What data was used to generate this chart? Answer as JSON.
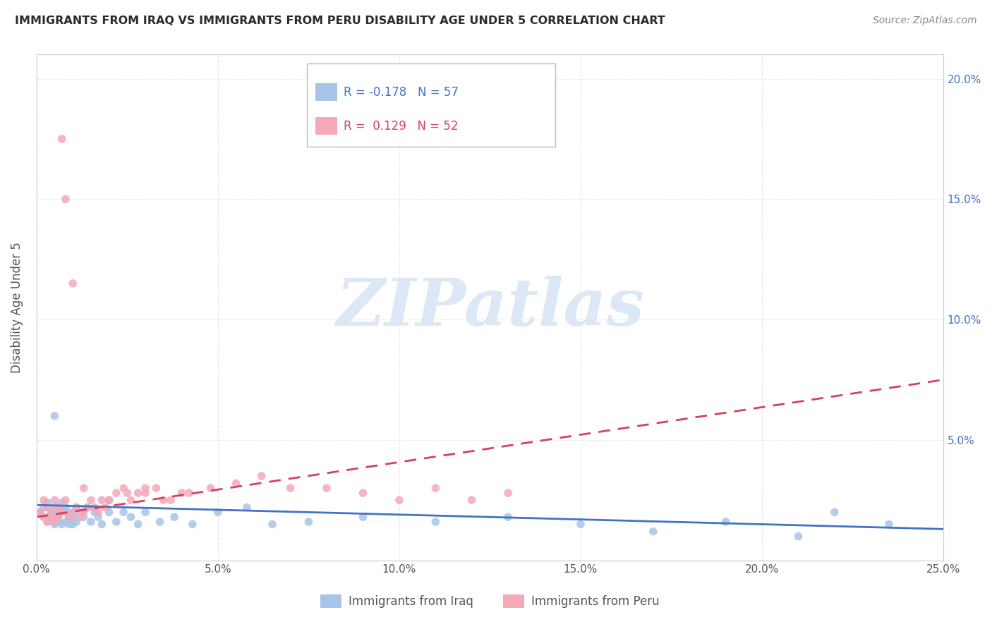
{
  "title": "IMMIGRANTS FROM IRAQ VS IMMIGRANTS FROM PERU DISABILITY AGE UNDER 5 CORRELATION CHART",
  "source": "Source: ZipAtlas.com",
  "ylabel": "Disability Age Under 5",
  "xlim": [
    0.0,
    0.25
  ],
  "ylim": [
    0.0,
    0.21
  ],
  "yticks": [
    0.0,
    0.05,
    0.1,
    0.15,
    0.2
  ],
  "ytick_labels_left": [
    "",
    "",
    "",
    "",
    ""
  ],
  "ytick_labels_right": [
    "",
    "5.0%",
    "10.0%",
    "15.0%",
    "20.0%"
  ],
  "xticks": [
    0.0,
    0.05,
    0.1,
    0.15,
    0.2,
    0.25
  ],
  "xtick_labels": [
    "0.0%",
    "5.0%",
    "10.0%",
    "15.0%",
    "20.0%",
    "25.0%"
  ],
  "iraq_color": "#a8c4e8",
  "peru_color": "#f4a8b8",
  "iraq_R": -0.178,
  "iraq_N": 57,
  "peru_R": 0.129,
  "peru_N": 52,
  "iraq_line_color": "#4472c4",
  "peru_line_color": "#d44060",
  "iraq_line_style": "solid",
  "peru_line_style": "dashed",
  "legend_iraq_label": "R = -0.178   N = 57",
  "legend_peru_label": "R =  0.129   N = 52",
  "bottom_legend_iraq": "Immigrants from Iraq",
  "bottom_legend_peru": "Immigrants from Peru",
  "watermark_text": "ZIPatlas",
  "watermark_color": "#dce8f5",
  "background_color": "#ffffff",
  "grid_color": "#e8e8e8",
  "spine_color": "#d0d0d0",
  "title_color": "#2b2b2b",
  "source_color": "#888888",
  "axis_label_color": "#555555",
  "tick_color": "#4472c4",
  "iraq_scatter_x": [
    0.001,
    0.002,
    0.002,
    0.003,
    0.003,
    0.004,
    0.004,
    0.005,
    0.005,
    0.005,
    0.006,
    0.006,
    0.006,
    0.007,
    0.007,
    0.007,
    0.008,
    0.008,
    0.008,
    0.009,
    0.009,
    0.01,
    0.01,
    0.01,
    0.011,
    0.011,
    0.012,
    0.013,
    0.014,
    0.015,
    0.016,
    0.017,
    0.018,
    0.02,
    0.022,
    0.024,
    0.026,
    0.028,
    0.03,
    0.034,
    0.038,
    0.043,
    0.05,
    0.058,
    0.065,
    0.075,
    0.09,
    0.11,
    0.13,
    0.15,
    0.17,
    0.19,
    0.21,
    0.22,
    0.235,
    0.005,
    0.008
  ],
  "iraq_scatter_y": [
    0.02,
    0.018,
    0.022,
    0.016,
    0.024,
    0.02,
    0.018,
    0.022,
    0.015,
    0.06,
    0.016,
    0.022,
    0.018,
    0.015,
    0.02,
    0.024,
    0.016,
    0.02,
    0.022,
    0.018,
    0.015,
    0.02,
    0.015,
    0.018,
    0.022,
    0.016,
    0.02,
    0.018,
    0.022,
    0.016,
    0.02,
    0.018,
    0.015,
    0.02,
    0.016,
    0.02,
    0.018,
    0.015,
    0.02,
    0.016,
    0.018,
    0.015,
    0.02,
    0.022,
    0.015,
    0.016,
    0.018,
    0.016,
    0.018,
    0.015,
    0.012,
    0.016,
    0.01,
    0.02,
    0.015,
    0.02,
    0.022
  ],
  "peru_scatter_x": [
    0.001,
    0.002,
    0.002,
    0.003,
    0.003,
    0.004,
    0.004,
    0.005,
    0.005,
    0.006,
    0.006,
    0.007,
    0.007,
    0.008,
    0.009,
    0.01,
    0.01,
    0.011,
    0.012,
    0.013,
    0.014,
    0.015,
    0.016,
    0.017,
    0.018,
    0.019,
    0.02,
    0.022,
    0.024,
    0.026,
    0.028,
    0.03,
    0.033,
    0.037,
    0.042,
    0.048,
    0.055,
    0.062,
    0.07,
    0.08,
    0.09,
    0.1,
    0.11,
    0.12,
    0.13,
    0.008,
    0.013,
    0.02,
    0.025,
    0.03,
    0.035,
    0.04
  ],
  "peru_scatter_y": [
    0.02,
    0.018,
    0.025,
    0.016,
    0.022,
    0.02,
    0.018,
    0.025,
    0.016,
    0.022,
    0.018,
    0.175,
    0.02,
    0.15,
    0.018,
    0.02,
    0.115,
    0.022,
    0.018,
    0.02,
    0.022,
    0.025,
    0.022,
    0.02,
    0.025,
    0.022,
    0.025,
    0.028,
    0.03,
    0.025,
    0.028,
    0.028,
    0.03,
    0.025,
    0.028,
    0.03,
    0.032,
    0.035,
    0.03,
    0.03,
    0.028,
    0.025,
    0.03,
    0.025,
    0.028,
    0.025,
    0.03,
    0.025,
    0.028,
    0.03,
    0.025,
    0.028
  ],
  "iraq_line_x": [
    0.0,
    0.25
  ],
  "iraq_line_y_start": 0.023,
  "iraq_line_y_end": 0.013,
  "peru_line_x": [
    0.0,
    0.25
  ],
  "peru_line_y_start": 0.018,
  "peru_line_y_end": 0.075
}
